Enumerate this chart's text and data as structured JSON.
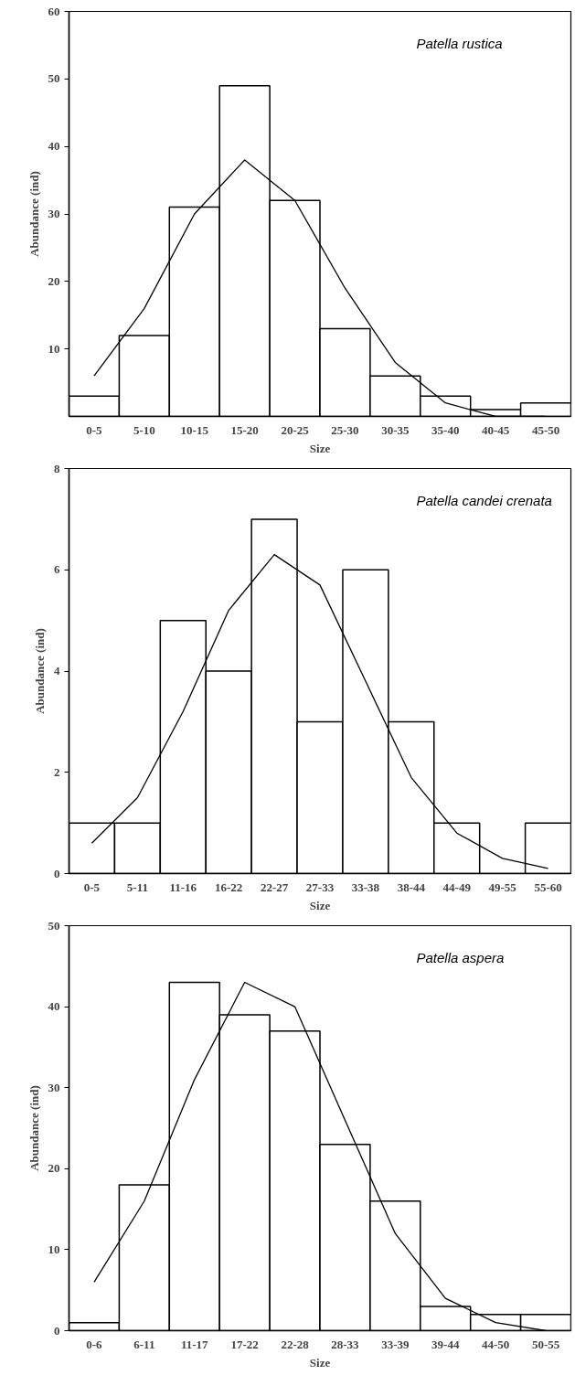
{
  "chart_data": [
    {
      "type": "bar",
      "categories": [
        "0-5",
        "5-10",
        "10-15",
        "15-20",
        "20-25",
        "25-30",
        "30-35",
        "35-40",
        "40-45",
        "45-50"
      ],
      "xlabel": "Size",
      "ylabel": "Abundance (ind)",
      "annotations": [
        "Patella rustica"
      ],
      "ylim": [
        0,
        60
      ],
      "yticks": [
        10,
        20,
        30,
        40,
        50,
        60
      ],
      "grid": false,
      "series": [
        {
          "color": "#ffffff",
          "values": [
            3,
            12,
            31,
            49,
            32,
            13,
            6,
            3,
            1,
            2
          ]
        },
        {
          "type": "line",
          "color": "#000000",
          "values": [
            6,
            16,
            30,
            38,
            32,
            19,
            8,
            2,
            0,
            0
          ]
        }
      ]
    },
    {
      "type": "bar",
      "categories": [
        "0-5",
        "5-11",
        "11-16",
        "16-22",
        "22-27",
        "27-33",
        "33-38",
        "38-44",
        "44-49",
        "49-55",
        "55-60"
      ],
      "xlabel": "Size",
      "ylabel": "Abundance (ind)",
      "annotations": [
        "Patella candei crenata"
      ],
      "ylim": [
        0,
        8
      ],
      "yticks": [
        0,
        2,
        4,
        6,
        8
      ],
      "grid": false,
      "series": [
        {
          "color": "#ffffff",
          "values": [
            1,
            1,
            5,
            4,
            7,
            3,
            6,
            3,
            1,
            0,
            1
          ]
        },
        {
          "type": "line",
          "color": "#000000",
          "values": [
            0.6,
            1.5,
            3.2,
            5.2,
            6.3,
            5.7,
            3.8,
            1.9,
            0.8,
            0.3,
            0.1
          ]
        }
      ]
    },
    {
      "type": "bar",
      "categories": [
        "0-6",
        "6-11",
        "11-17",
        "17-22",
        "22-28",
        "28-33",
        "33-39",
        "39-44",
        "44-50",
        "50-55"
      ],
      "xlabel": "Size",
      "ylabel": "Abundance (ind)",
      "annotations": [
        "Patella aspera"
      ],
      "ylim": [
        0,
        50
      ],
      "yticks": [
        0,
        10,
        20,
        30,
        40,
        50
      ],
      "grid": false,
      "series": [
        {
          "color": "#ffffff",
          "values": [
            1,
            18,
            43,
            39,
            37,
            23,
            16,
            3,
            2,
            2
          ]
        },
        {
          "type": "line",
          "color": "#000000",
          "values": [
            6,
            16,
            31,
            43,
            40,
            26,
            12,
            4,
            1,
            0
          ]
        }
      ]
    }
  ]
}
